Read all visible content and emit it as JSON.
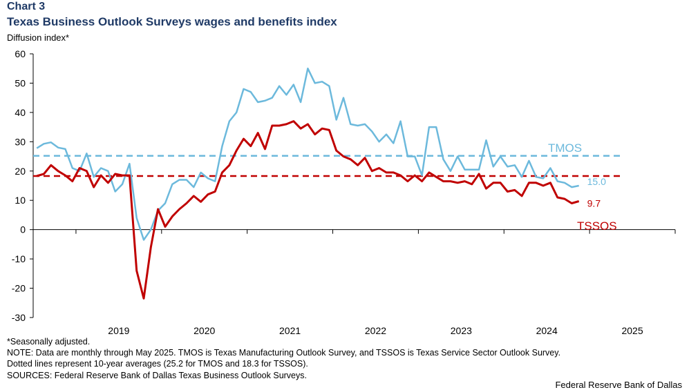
{
  "header": {
    "chart_label": "Chart 3",
    "title": "Texas Business Outlook Surveys wages and benefits index",
    "y_axis_label": "Diffusion index*"
  },
  "notes": {
    "line1": "*Seasonally adjusted.",
    "line2": "NOTE: Data are monthly through May 2025. TMOS is Texas Manufacturing Outlook Survey, and TSSOS is Texas Service Sector Outlook Survey.",
    "line3": "Dotted lines represent 10-year averages (25.2 for TMOS and 18.3 for TSSOS).",
    "line4": "SOURCES: Federal Reserve Bank of Dallas Texas Business Outlook Surveys."
  },
  "credit": "Federal Reserve Bank of Dallas",
  "colors": {
    "tmos": "#6cb9dc",
    "tssos": "#c00000",
    "title": "#1f3a66"
  },
  "chart_data": {
    "type": "line",
    "title": "Texas Business Outlook Surveys wages and benefits index",
    "ylabel": "Diffusion index*",
    "ylim": [
      -30,
      60
    ],
    "yticks": [
      "60",
      "50",
      "40",
      "30",
      "20",
      "10",
      "0",
      "-10",
      "-20",
      "-30"
    ],
    "year_labels": [
      "2019",
      "2020",
      "2021",
      "2022",
      "2023",
      "2024",
      "2025"
    ],
    "x_start": "2018-07",
    "x_end": "2025-12",
    "averages": [
      {
        "series": "TMOS",
        "value": 25.2
      },
      {
        "series": "TSSOS",
        "value": 18.3
      }
    ],
    "series": [
      {
        "name": "TMOS",
        "label": "TMOS",
        "end_label": "15.0",
        "start": "2018-07",
        "values": [
          27.8,
          29.3,
          29.8,
          28.0,
          27.5,
          21.0,
          20.0,
          26.0,
          18.0,
          21.0,
          20.0,
          13.0,
          15.5,
          22.5,
          4.0,
          -3.5,
          0.0,
          6.5,
          9.0,
          15.5,
          17.0,
          17.0,
          14.5,
          19.5,
          17.5,
          16.5,
          28.5,
          37.0,
          40.0,
          48.0,
          47.0,
          43.5,
          44.0,
          45.0,
          49.0,
          46.0,
          49.5,
          43.5,
          55.0,
          50.0,
          50.5,
          49.0,
          37.5,
          45.0,
          36.0,
          35.5,
          36.0,
          33.5,
          30.0,
          32.5,
          29.5,
          37.0,
          25.0,
          25.0,
          18.5,
          35.0,
          35.0,
          24.0,
          20.0,
          25.0,
          20.5,
          20.5,
          20.5,
          30.5,
          21.5,
          25.0,
          21.5,
          22.0,
          18.0,
          23.5,
          18.0,
          17.5,
          21.0,
          16.5,
          16.0,
          14.5,
          15.0
        ]
      },
      {
        "name": "TSSOS",
        "label": "TSSOS",
        "end_label": "9.7",
        "start": "2018-07",
        "values": [
          18.3,
          19.0,
          22.0,
          20.0,
          18.5,
          16.5,
          21.0,
          20.0,
          14.5,
          18.5,
          16.0,
          19.0,
          18.5,
          18.5,
          -14.0,
          -23.5,
          -6.0,
          7.0,
          1.0,
          4.5,
          7.0,
          9.0,
          11.5,
          9.5,
          12.0,
          13.0,
          19.5,
          22.0,
          27.0,
          31.0,
          28.5,
          33.0,
          27.5,
          35.5,
          35.5,
          36.0,
          37.0,
          34.5,
          36.0,
          32.5,
          34.5,
          34.0,
          27.0,
          25.0,
          24.0,
          22.0,
          24.5,
          20.0,
          21.0,
          19.5,
          19.5,
          18.5,
          16.5,
          18.5,
          16.5,
          19.5,
          18.0,
          16.5,
          16.5,
          16.0,
          16.5,
          15.5,
          19.0,
          14.0,
          16.0,
          16.0,
          13.0,
          13.5,
          11.5,
          16.0,
          16.0,
          15.0,
          16.0,
          11.0,
          10.5,
          9.0,
          9.7
        ]
      }
    ]
  }
}
